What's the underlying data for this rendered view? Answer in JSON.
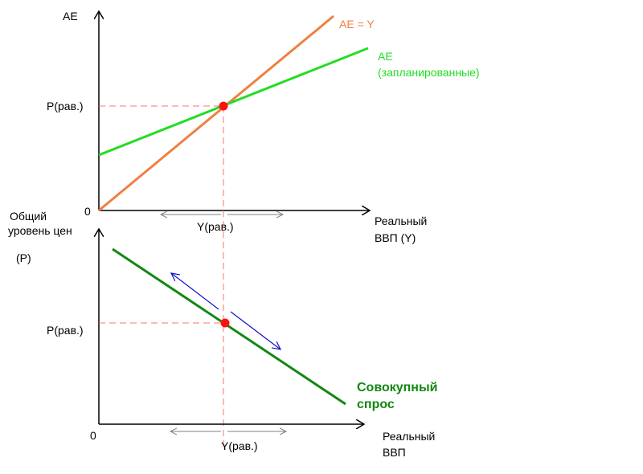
{
  "top_chart": {
    "y_axis_label": "AE",
    "x_axis_label_line1": "Реальный",
    "x_axis_label_line2": "ВВП  (Y)",
    "origin_label": "0",
    "p_eq_label": "P(рав.)",
    "y_eq_label": "Y(рав.)",
    "line_ae_y_label": "AE = Y",
    "line_planned_label_line1": "AE",
    "line_planned_label_line2": "(запланированные)"
  },
  "bottom_chart": {
    "y_axis_label_line1": "Общий",
    "y_axis_label_line2": "уровень цен",
    "y_axis_label_line3": "(P)",
    "x_axis_label_line1": "Реальный",
    "x_axis_label_line2": "ВВП",
    "origin_label": "0",
    "p_eq_label": "P(рав.)",
    "y_eq_label": "Y(рав.)",
    "demand_label_line1": "Совокупный",
    "demand_label_line2": "спрос"
  },
  "colors": {
    "axis": "#000000",
    "ae_y_line": "#f08040",
    "planned_line": "#22dd22",
    "demand_line": "#118811",
    "equilibrium_point": "#ff1010",
    "guide_dashes": "#ff7070",
    "range_arrows": "#808080",
    "movement_arrows": "#1010cc"
  }
}
